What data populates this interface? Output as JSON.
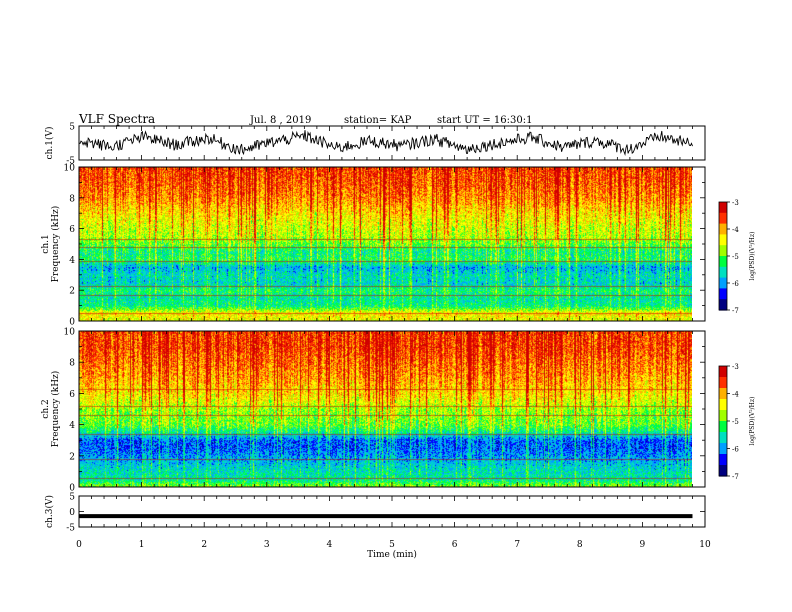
{
  "header": {
    "title": "VLF Spectra",
    "date": "Jul. 8 , 2019",
    "station": "station= KAP",
    "start": "start UT = 16:30:1"
  },
  "chart_data": [
    {
      "type": "line",
      "panel": "ch1-waveform",
      "ylabel": "ch.1(V)",
      "ylim": [
        -5,
        5
      ],
      "yticks": [
        "5",
        "-5"
      ],
      "xlim": [
        0,
        10
      ],
      "description_values": "noisy waveform oscillating roughly between -4 and 4 V",
      "series": [
        {
          "values": [
            1.5,
            -2.0,
            3.0,
            -1.0,
            2.5,
            -3.5,
            0.5,
            3.5,
            -2.5,
            1.0,
            -1.5,
            2.0,
            -3.0,
            0.0,
            2.8,
            -2.2,
            1.2,
            -3.2,
            3.3,
            -0.8
          ]
        }
      ]
    },
    {
      "type": "heatmap",
      "panel": "ch1-spectrogram",
      "ylabel": "ch.1\nFrequency (kHz)",
      "ylim": [
        0,
        10
      ],
      "yticks": [
        "0",
        "2",
        "4",
        "6",
        "8",
        "10"
      ],
      "xlim": [
        0,
        9.8
      ],
      "colorbar": {
        "label": "log(PSD)(V²/Hz)",
        "range": [
          -7,
          -3
        ],
        "ticks": [
          "-3",
          "-4",
          "-5",
          "-6",
          "-7"
        ]
      },
      "frequency_profile_log_psd": [
        {
          "f": 0,
          "v": -4.6
        },
        {
          "f": 0.5,
          "v": -4.3
        },
        {
          "f": 1,
          "v": -5.4
        },
        {
          "f": 1.5,
          "v": -5.5
        },
        {
          "f": 2,
          "v": -5.3
        },
        {
          "f": 2.5,
          "v": -5.7
        },
        {
          "f": 3,
          "v": -5.6
        },
        {
          "f": 3.5,
          "v": -5.9
        },
        {
          "f": 4,
          "v": -5.2
        },
        {
          "f": 4.5,
          "v": -5.4
        },
        {
          "f": 5,
          "v": -5.0
        },
        {
          "f": 5.5,
          "v": -4.7
        },
        {
          "f": 6,
          "v": -4.6
        },
        {
          "f": 7,
          "v": -4.3
        },
        {
          "f": 8,
          "v": -3.9
        },
        {
          "f": 9,
          "v": -3.7
        },
        {
          "f": 10,
          "v": -3.6
        }
      ],
      "lines_khz": [
        0.5,
        1.7,
        2.3,
        3.9,
        4.8,
        5.3
      ]
    },
    {
      "type": "heatmap",
      "panel": "ch2-spectrogram",
      "ylabel": "ch.2\nFrequency (kHz)",
      "ylim": [
        0,
        10
      ],
      "yticks": [
        "0",
        "2",
        "4",
        "6",
        "8",
        "10"
      ],
      "xlim": [
        0,
        9.8
      ],
      "colorbar": {
        "label": "log(PSD)(V²/Hz)",
        "range": [
          -7,
          -3
        ],
        "ticks": [
          "-3",
          "-4",
          "-5",
          "-6",
          "-7"
        ]
      },
      "frequency_profile_log_psd": [
        {
          "f": 0,
          "v": -4.8
        },
        {
          "f": 0.5,
          "v": -5.5
        },
        {
          "f": 1,
          "v": -5.6
        },
        {
          "f": 1.5,
          "v": -5.8
        },
        {
          "f": 2,
          "v": -6.0
        },
        {
          "f": 2.5,
          "v": -6.2
        },
        {
          "f": 3,
          "v": -6.2
        },
        {
          "f": 3.5,
          "v": -5.5
        },
        {
          "f": 4,
          "v": -5.0
        },
        {
          "f": 4.5,
          "v": -4.9
        },
        {
          "f": 5,
          "v": -4.8
        },
        {
          "f": 5.5,
          "v": -4.5
        },
        {
          "f": 6,
          "v": -4.3
        },
        {
          "f": 7,
          "v": -4.0
        },
        {
          "f": 8,
          "v": -3.8
        },
        {
          "f": 9,
          "v": -3.6
        },
        {
          "f": 10,
          "v": -3.6
        }
      ],
      "lines_khz": [
        0.6,
        1.8,
        3.4,
        4.6,
        5.2,
        6.3
      ]
    },
    {
      "type": "line",
      "panel": "ch3-waveform",
      "ylabel": "ch.3(V)",
      "ylim": [
        -5,
        5
      ],
      "yticks": [
        "5",
        "0",
        "-5"
      ],
      "xlim": [
        0,
        10
      ],
      "series": [
        {
          "values": [
            -1.5,
            -1.5
          ]
        }
      ]
    }
  ],
  "xaxis": {
    "label": "Time (min)",
    "ticks": [
      "0",
      "1",
      "2",
      "3",
      "4",
      "5",
      "6",
      "7",
      "8",
      "9",
      "10"
    ]
  },
  "colors": {
    "colormap": [
      "#000080",
      "#0000ff",
      "#00a0ff",
      "#00e0c0",
      "#00ff40",
      "#a0ff00",
      "#ffff00",
      "#ffb000",
      "#ff3000",
      "#d00000"
    ]
  }
}
